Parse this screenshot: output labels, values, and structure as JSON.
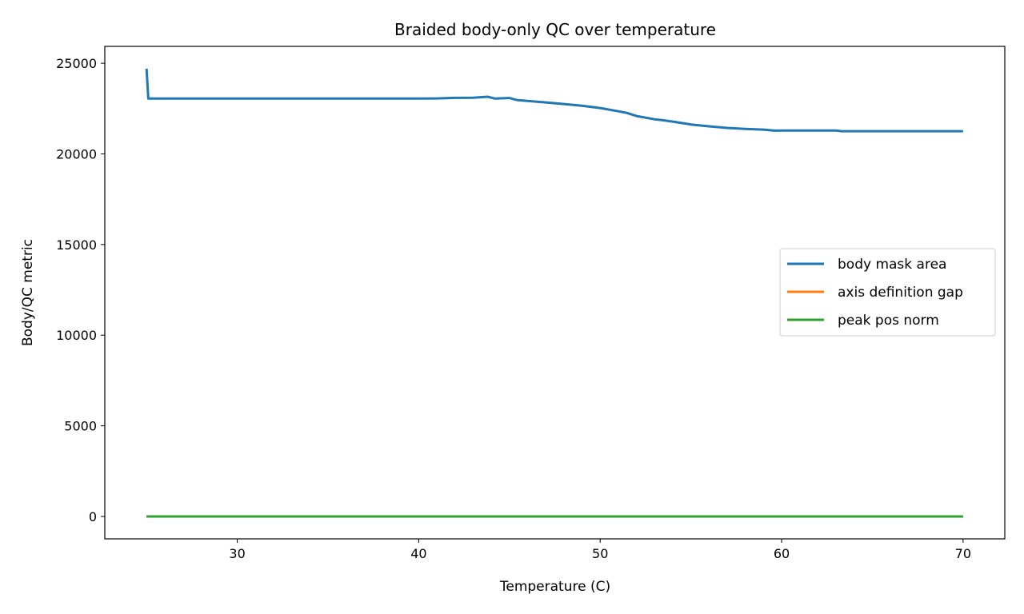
{
  "chart_data": {
    "type": "line",
    "title": "Braided body-only QC over temperature",
    "xlabel": "Temperature (C)",
    "ylabel": "Body/QC metric",
    "xlim": [
      22.7,
      72.3
    ],
    "ylim": [
      -1235,
      25930
    ],
    "xticks": [
      30,
      40,
      50,
      60,
      70
    ],
    "yticks": [
      0,
      5000,
      10000,
      15000,
      20000,
      25000
    ],
    "grid": false,
    "legend_position": "center-right",
    "series": [
      {
        "name": "body mask area",
        "color": "#1f77b4",
        "x": [
          25.0,
          25.1,
          30,
          35,
          40,
          41,
          42,
          43,
          43.8,
          44.2,
          45.0,
          45.4,
          46,
          47,
          48,
          49,
          50,
          51,
          51.5,
          52,
          53,
          53.5,
          54,
          54.4,
          55,
          56,
          57,
          58,
          59,
          59.6,
          60,
          61,
          62,
          63,
          63.3,
          65,
          70
        ],
        "y": [
          24700,
          23050,
          23050,
          23050,
          23050,
          23060,
          23090,
          23100,
          23150,
          23050,
          23080,
          22970,
          22920,
          22840,
          22750,
          22660,
          22530,
          22350,
          22250,
          22090,
          21910,
          21850,
          21780,
          21720,
          21620,
          21520,
          21430,
          21380,
          21340,
          21280,
          21290,
          21290,
          21290,
          21290,
          21250,
          21250,
          21250
        ]
      },
      {
        "name": "axis definition gap",
        "color": "#ff7f0e",
        "x": [
          25,
          70
        ],
        "y": [
          0,
          0
        ]
      },
      {
        "name": "peak pos norm",
        "color": "#2ca02c",
        "x": [
          25,
          70
        ],
        "y": [
          0,
          0
        ]
      }
    ]
  }
}
